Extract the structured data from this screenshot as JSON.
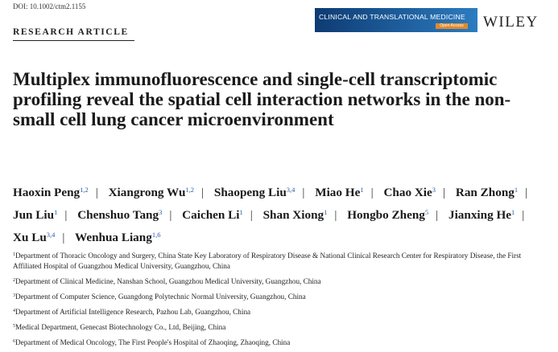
{
  "doi": "DOI: 10.1002/ctm2.1155",
  "article_type": "RESEARCH ARTICLE",
  "journal": {
    "name": "CLINICAL AND TRANSLATIONAL MEDICINE",
    "badge": "Open Access"
  },
  "publisher": "WILEY",
  "title": "Multiplex immunofluorescence and single-cell transcriptomic profiling reveal the spatial cell interaction networks in the non-small cell lung cancer microenvironment",
  "authors": [
    {
      "name": "Haoxin Peng",
      "aff": "1,2"
    },
    {
      "name": "Xiangrong Wu",
      "aff": "1,2"
    },
    {
      "name": "Shaopeng Liu",
      "aff": "3,4"
    },
    {
      "name": "Miao He",
      "aff": "1"
    },
    {
      "name": "Chao Xie",
      "aff": "3"
    },
    {
      "name": "Ran Zhong",
      "aff": "1"
    },
    {
      "name": "Jun Liu",
      "aff": "1"
    },
    {
      "name": "Chenshuo Tang",
      "aff": "3"
    },
    {
      "name": "Caichen Li",
      "aff": "1"
    },
    {
      "name": "Shan Xiong",
      "aff": "1"
    },
    {
      "name": "Hongbo Zheng",
      "aff": "5"
    },
    {
      "name": "Jianxing He",
      "aff": "1"
    },
    {
      "name": "Xu Lu",
      "aff": "3,4"
    },
    {
      "name": "Wenhua Liang",
      "aff": "1,6"
    }
  ],
  "affiliations": [
    {
      "num": "1",
      "text": "Department of Thoracic Oncology and Surgery, China State Key Laboratory of Respiratory Disease & National Clinical Research Center for Respiratory Disease, the First Affiliated Hospital of Guangzhou Medical University, Guangzhou, China"
    },
    {
      "num": "2",
      "text": "Department of Clinical Medicine, Nanshan School, Guangzhou Medical University, Guangzhou, China"
    },
    {
      "num": "3",
      "text": "Department of Computer Science, Guangdong Polytechnic Normal University, Guangzhou, China"
    },
    {
      "num": "4",
      "text": "Department of Artificial Intelligence Research, Pazhou Lab, Guangzhou, China"
    },
    {
      "num": "5",
      "text": "Medical Department, Genecast Biotechnology Co., Ltd, Beijing, China"
    },
    {
      "num": "6",
      "text": "Department of Medical Oncology, The First People's Hospital of Zhaoqing, Zhaoqing, China"
    }
  ]
}
